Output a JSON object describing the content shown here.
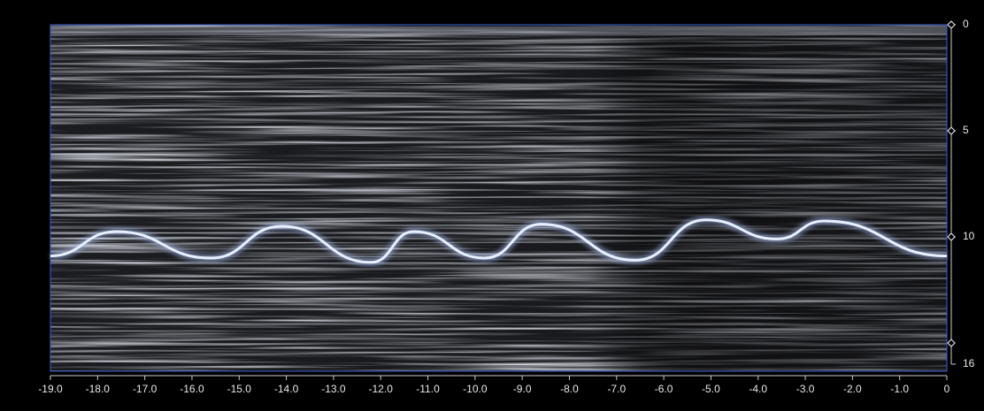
{
  "chart_data": {
    "type": "line",
    "series": [
      {
        "color": "#e8f0ff",
        "x": [
          -19.0,
          -17.6,
          -15.6,
          -14.1,
          -12.2,
          -11.3,
          -9.8,
          -8.6,
          -6.6,
          -5.1,
          -3.6,
          -2.6,
          0
        ],
        "values": [
          10.9,
          9.75,
          11.0,
          9.5,
          11.2,
          9.75,
          11.0,
          9.4,
          11.1,
          9.2,
          10.1,
          9.25,
          10.9
        ]
      }
    ],
    "xlim": [
      -19,
      0
    ],
    "xticks": [
      {
        "value": -19,
        "label": "-19.0"
      },
      {
        "value": -18,
        "label": "-18.0"
      },
      {
        "value": -17,
        "label": "-17.0"
      },
      {
        "value": -16,
        "label": "-16.0"
      },
      {
        "value": -15,
        "label": "-15.0"
      },
      {
        "value": -14,
        "label": "-14.0"
      },
      {
        "value": -13,
        "label": "-13.0"
      },
      {
        "value": -12,
        "label": "-12.0"
      },
      {
        "value": -11,
        "label": "-11.0"
      },
      {
        "value": -10,
        "label": "-10.0"
      },
      {
        "value": -9,
        "label": "-9.0"
      },
      {
        "value": -8,
        "label": "-8.0"
      },
      {
        "value": -7,
        "label": "-7.0"
      },
      {
        "value": -6,
        "label": "-6.0"
      },
      {
        "value": -5,
        "label": "-5.0"
      },
      {
        "value": -4,
        "label": "-4.0"
      },
      {
        "value": -3,
        "label": "-3.0"
      },
      {
        "value": -2,
        "label": "-2.0"
      },
      {
        "value": -1,
        "label": "-1.0"
      },
      0
    ],
    "ylim": [
      0,
      16
    ],
    "y_inverted": true,
    "yticks": [
      0,
      5,
      10,
      16
    ],
    "markers": [
      0,
      5,
      10,
      15
    ]
  }
}
